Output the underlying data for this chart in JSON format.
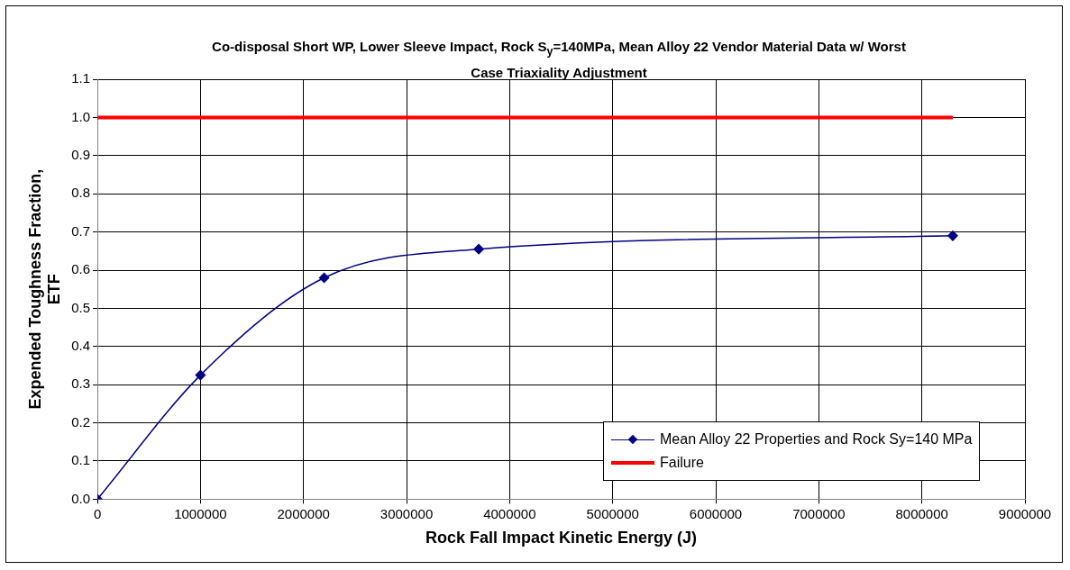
{
  "chart_data": {
    "type": "line",
    "title": "Co-disposal Short WP, Lower Sleeve Impact, Rock S$_{y}$=140MPa, Mean Alloy 22 Vendor Material Data w/ Worst Case Triaxiality Adjustment",
    "xlabel": "Rock Fall Impact Kinetic Energy (J)",
    "ylabel": "Expended Toughness Fraction, ETF",
    "xlim": [
      0,
      9000000
    ],
    "xticks": [
      0,
      1000000,
      2000000,
      3000000,
      4000000,
      5000000,
      6000000,
      7000000,
      8000000,
      9000000
    ],
    "ylim": [
      0,
      1.1
    ],
    "yticks": [
      {
        "value": 0,
        "label": "0.0"
      },
      {
        "value": 0.1,
        "label": "0.1"
      },
      {
        "value": 0.2,
        "label": "0.2"
      },
      {
        "value": 0.3,
        "label": "0.3"
      },
      {
        "value": 0.4,
        "label": "0.4"
      },
      {
        "value": 0.5,
        "label": "0.5"
      },
      {
        "value": 0.6,
        "label": "0.6"
      },
      {
        "value": 0.7,
        "label": "0.7"
      },
      {
        "value": 0.8,
        "label": "0.8"
      },
      {
        "value": 0.9,
        "label": "0.9"
      },
      {
        "value": 1.0,
        "label": "1.0"
      },
      {
        "value": 1.1,
        "label": "1.1"
      }
    ],
    "grid": true,
    "legend": "bottom right",
    "series": [
      {
        "name": "Mean Alloy 22 Properties and Rock Sy=140 MPa",
        "color": "#000080",
        "marker": "diamond",
        "x": [
          0,
          1000000,
          2200000,
          3700000,
          8300000
        ],
        "values": [
          0,
          0.325,
          0.58,
          0.655,
          0.69
        ]
      },
      {
        "name": "Failure",
        "color": "#ff0000",
        "marker": "none",
        "x": [
          0,
          8300000
        ],
        "values": [
          1.0,
          1.0
        ]
      }
    ]
  }
}
